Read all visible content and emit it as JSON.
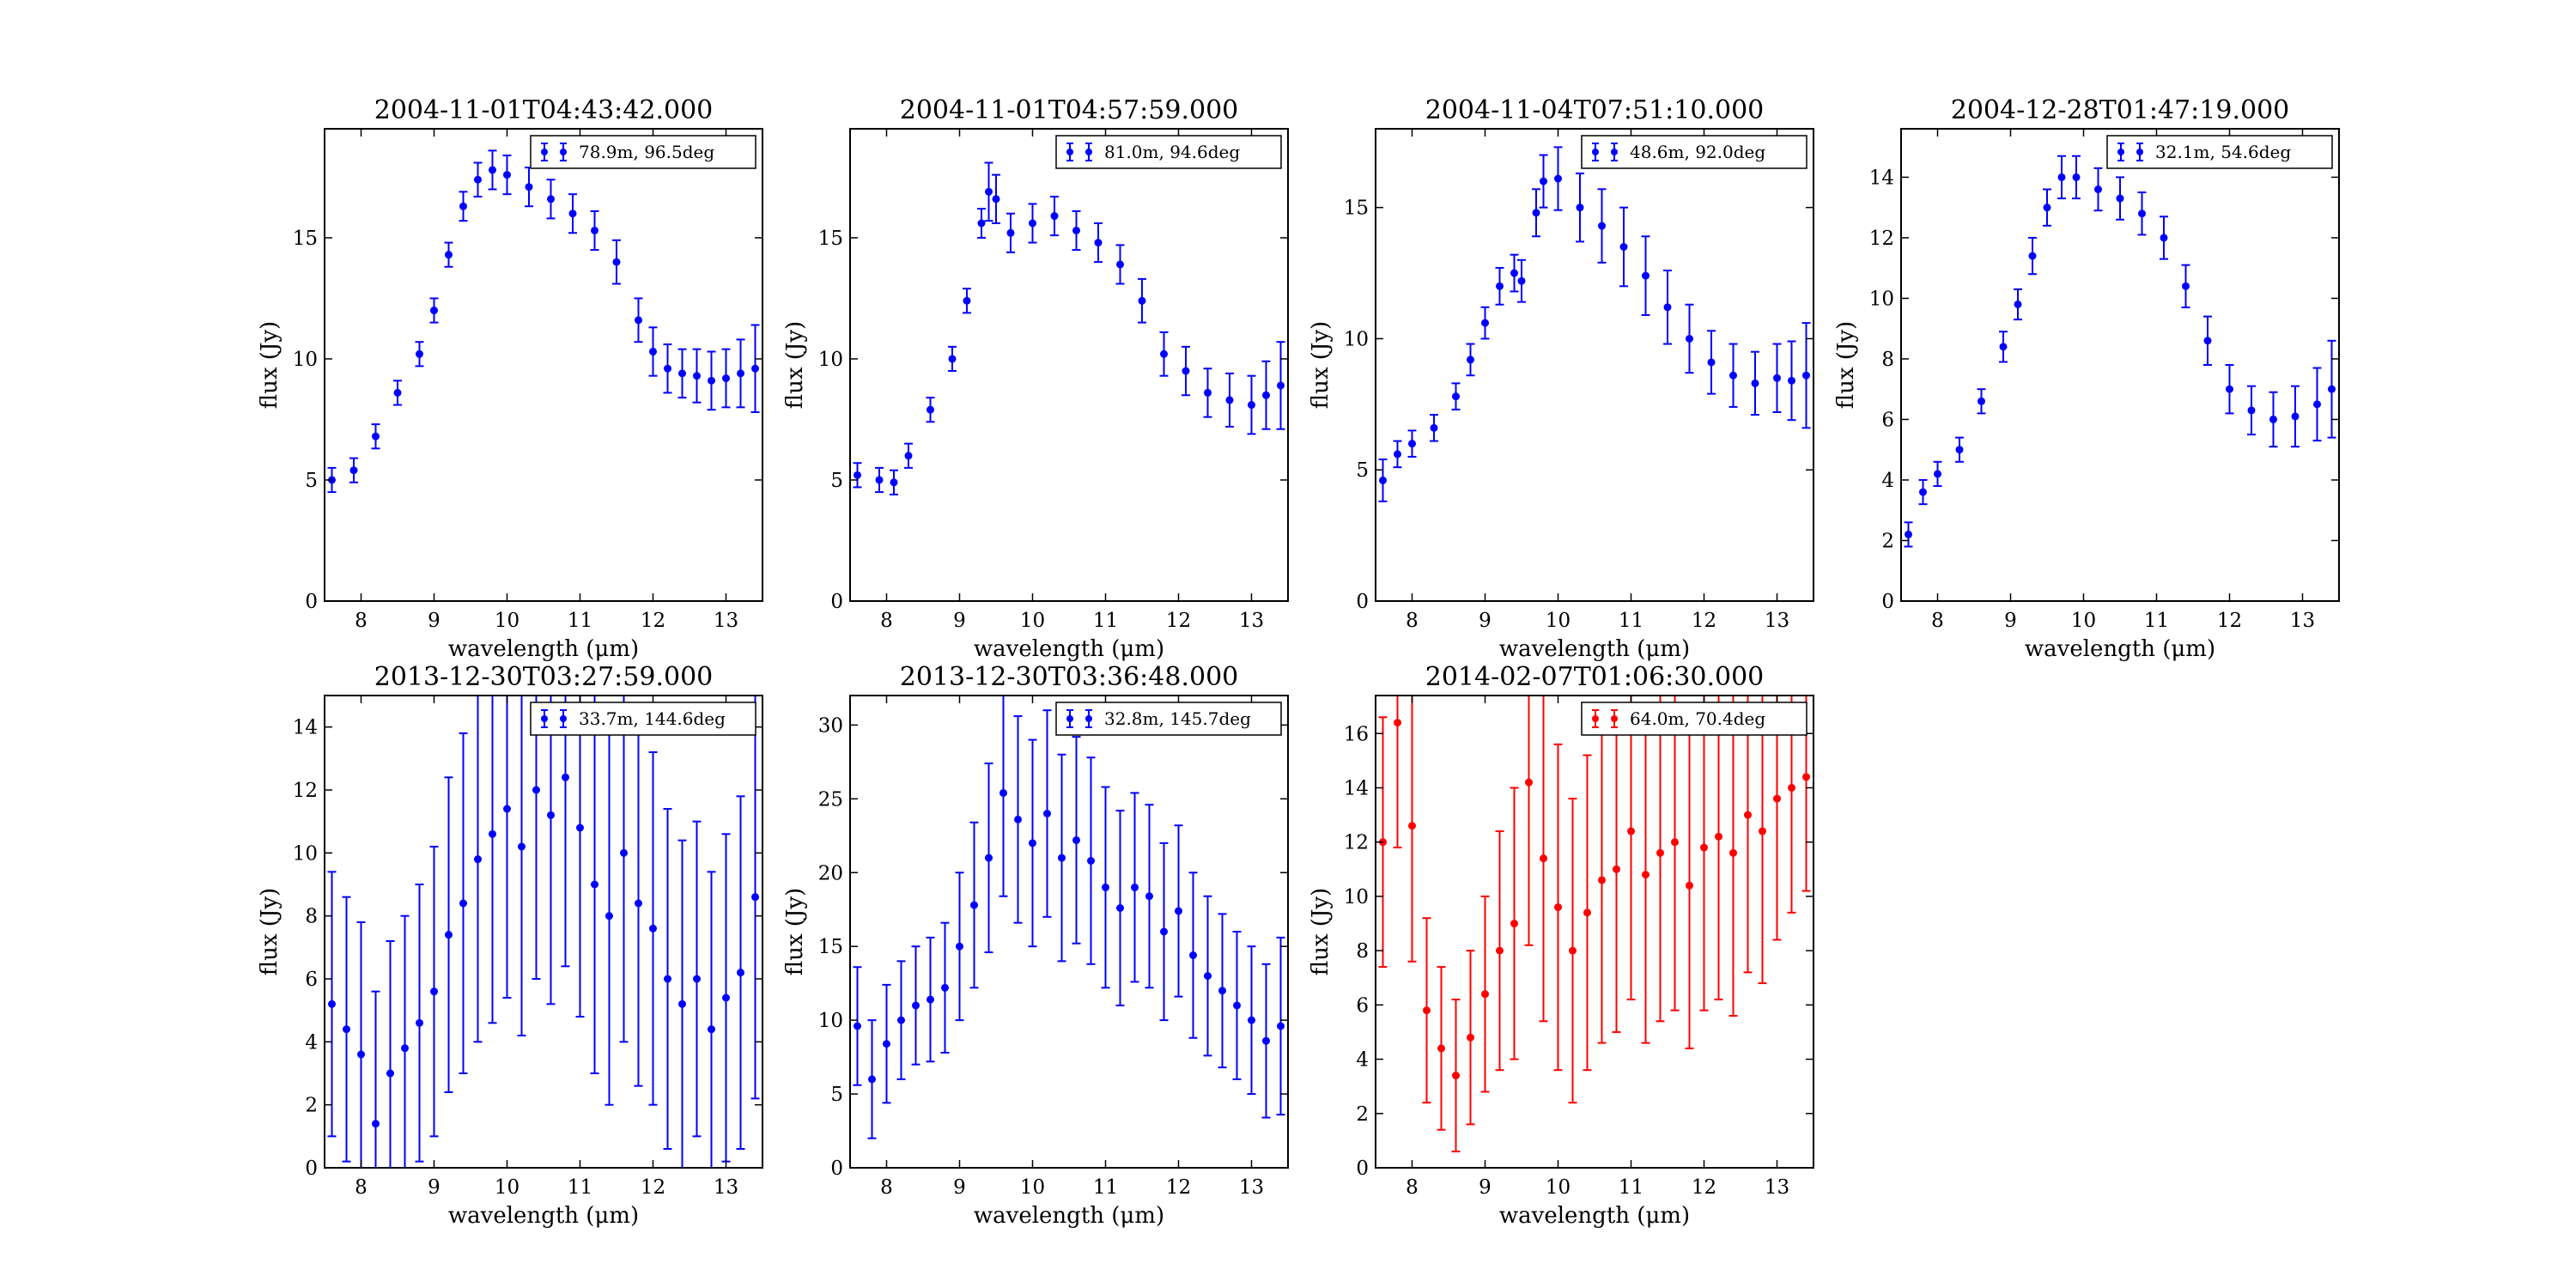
{
  "figure": {
    "colors": {
      "blue": "#0000ff",
      "red": "#ff0000"
    }
  },
  "chart_data": [
    {
      "type": "scatter",
      "title": "2004-11-01T04:43:42.000",
      "xlabel": "wavelength (μm)",
      "ylabel": "flux (Jy)",
      "xlim": [
        7.5,
        13.5
      ],
      "ylim": [
        0,
        19.5
      ],
      "xticks": [
        "8",
        "9",
        "10",
        "11",
        "12",
        "13"
      ],
      "yticks": [
        "0",
        "5",
        "10",
        "15"
      ],
      "color": "#0000ff",
      "legend": {
        "label": "78.9m, 96.5deg",
        "position": "upper right"
      },
      "series": [
        {
          "label": "78.9m, 96.5deg",
          "x": [
            7.6,
            7.9,
            8.2,
            8.5,
            8.8,
            9.0,
            9.2,
            9.4,
            9.6,
            9.8,
            10.0,
            10.3,
            10.6,
            10.9,
            11.2,
            11.5,
            11.8,
            12.0,
            12.2,
            12.4,
            12.6,
            12.8,
            13.0,
            13.2,
            13.4
          ],
          "y": [
            5.0,
            5.4,
            6.8,
            8.6,
            10.2,
            12.0,
            14.3,
            16.3,
            17.4,
            17.8,
            17.6,
            17.1,
            16.6,
            16.0,
            15.3,
            14.0,
            11.6,
            10.3,
            9.6,
            9.4,
            9.3,
            9.1,
            9.2,
            9.4,
            9.6
          ],
          "err": [
            0.5,
            0.5,
            0.5,
            0.5,
            0.5,
            0.5,
            0.5,
            0.6,
            0.7,
            0.8,
            0.8,
            0.8,
            0.8,
            0.8,
            0.8,
            0.9,
            0.9,
            1.0,
            1.0,
            1.0,
            1.1,
            1.2,
            1.2,
            1.4,
            1.8
          ]
        }
      ]
    },
    {
      "type": "scatter",
      "title": "2004-11-01T04:57:59.000",
      "xlabel": "wavelength (μm)",
      "ylabel": "flux (Jy)",
      "xlim": [
        7.5,
        13.5
      ],
      "ylim": [
        0,
        19.5
      ],
      "xticks": [
        "8",
        "9",
        "10",
        "11",
        "12",
        "13"
      ],
      "yticks": [
        "0",
        "5",
        "10",
        "15"
      ],
      "color": "#0000ff",
      "legend": {
        "label": "81.0m, 94.6deg",
        "position": "upper right"
      },
      "series": [
        {
          "label": "81.0m, 94.6deg",
          "x": [
            7.6,
            7.9,
            8.1,
            8.3,
            8.6,
            8.9,
            9.1,
            9.3,
            9.4,
            9.5,
            9.7,
            10.0,
            10.3,
            10.6,
            10.9,
            11.2,
            11.5,
            11.8,
            12.1,
            12.4,
            12.7,
            13.0,
            13.2,
            13.4
          ],
          "y": [
            5.2,
            5.0,
            4.9,
            6.0,
            7.9,
            10.0,
            12.4,
            15.6,
            16.9,
            16.6,
            15.2,
            15.6,
            15.9,
            15.3,
            14.8,
            13.9,
            12.4,
            10.2,
            9.5,
            8.6,
            8.3,
            8.1,
            8.5,
            8.9
          ],
          "err": [
            0.5,
            0.5,
            0.5,
            0.5,
            0.5,
            0.5,
            0.5,
            0.6,
            1.2,
            1.0,
            0.8,
            0.8,
            0.8,
            0.8,
            0.8,
            0.8,
            0.9,
            0.9,
            1.0,
            1.0,
            1.1,
            1.2,
            1.4,
            1.8
          ]
        }
      ]
    },
    {
      "type": "scatter",
      "title": "2004-11-04T07:51:10.000",
      "xlabel": "wavelength (μm)",
      "ylabel": "flux (Jy)",
      "xlim": [
        7.5,
        13.5
      ],
      "ylim": [
        0,
        18
      ],
      "xticks": [
        "8",
        "9",
        "10",
        "11",
        "12",
        "13"
      ],
      "yticks": [
        "0",
        "5",
        "10",
        "15"
      ],
      "color": "#0000ff",
      "legend": {
        "label": "48.6m, 92.0deg",
        "position": "upper right"
      },
      "series": [
        {
          "label": "48.6m, 92.0deg",
          "x": [
            7.6,
            7.8,
            8.0,
            8.3,
            8.6,
            8.8,
            9.0,
            9.2,
            9.4,
            9.5,
            9.7,
            9.8,
            10.0,
            10.3,
            10.6,
            10.9,
            11.2,
            11.5,
            11.8,
            12.1,
            12.4,
            12.7,
            13.0,
            13.2,
            13.4
          ],
          "y": [
            4.6,
            5.6,
            6.0,
            6.6,
            7.8,
            9.2,
            10.6,
            12.0,
            12.5,
            12.2,
            14.8,
            16.0,
            16.1,
            15.0,
            14.3,
            13.5,
            12.4,
            11.2,
            10.0,
            9.1,
            8.6,
            8.3,
            8.5,
            8.4,
            8.6
          ],
          "err": [
            0.8,
            0.5,
            0.5,
            0.5,
            0.5,
            0.6,
            0.6,
            0.7,
            0.7,
            0.8,
            0.9,
            1.0,
            1.2,
            1.3,
            1.4,
            1.5,
            1.5,
            1.4,
            1.3,
            1.2,
            1.2,
            1.2,
            1.3,
            1.5,
            2.0
          ]
        }
      ]
    },
    {
      "type": "scatter",
      "title": "2004-12-28T01:47:19.000",
      "xlabel": "wavelength (μm)",
      "ylabel": "flux (Jy)",
      "xlim": [
        7.5,
        13.5
      ],
      "ylim": [
        0,
        15.6
      ],
      "xticks": [
        "8",
        "9",
        "10",
        "11",
        "12",
        "13"
      ],
      "yticks": [
        "0",
        "2",
        "4",
        "6",
        "8",
        "10",
        "12",
        "14"
      ],
      "color": "#0000ff",
      "legend": {
        "label": "32.1m, 54.6deg",
        "position": "upper right"
      },
      "series": [
        {
          "label": "32.1m, 54.6deg",
          "x": [
            7.6,
            7.8,
            8.0,
            8.3,
            8.6,
            8.9,
            9.1,
            9.3,
            9.5,
            9.7,
            9.9,
            10.2,
            10.5,
            10.8,
            11.1,
            11.4,
            11.7,
            12.0,
            12.3,
            12.6,
            12.9,
            13.2,
            13.4
          ],
          "y": [
            2.2,
            3.6,
            4.2,
            5.0,
            6.6,
            8.4,
            9.8,
            11.4,
            13.0,
            14.0,
            14.0,
            13.6,
            13.3,
            12.8,
            12.0,
            10.4,
            8.6,
            7.0,
            6.3,
            6.0,
            6.1,
            6.5,
            7.0
          ],
          "err": [
            0.4,
            0.4,
            0.4,
            0.4,
            0.4,
            0.5,
            0.5,
            0.6,
            0.6,
            0.7,
            0.7,
            0.7,
            0.7,
            0.7,
            0.7,
            0.7,
            0.8,
            0.8,
            0.8,
            0.9,
            1.0,
            1.2,
            1.6
          ]
        }
      ]
    },
    {
      "type": "scatter",
      "title": "2013-12-30T03:27:59.000",
      "xlabel": "wavelength (μm)",
      "ylabel": "flux (Jy)",
      "xlim": [
        7.5,
        13.5
      ],
      "ylim": [
        0,
        15
      ],
      "xticks": [
        "8",
        "9",
        "10",
        "11",
        "12",
        "13"
      ],
      "yticks": [
        "0",
        "2",
        "4",
        "6",
        "8",
        "10",
        "12",
        "14"
      ],
      "color": "#0000ff",
      "legend": {
        "label": "33.7m, 144.6deg",
        "position": "upper right"
      },
      "series": [
        {
          "label": "33.7m, 144.6deg",
          "x": [
            7.6,
            7.8,
            8.0,
            8.2,
            8.4,
            8.6,
            8.8,
            9.0,
            9.2,
            9.4,
            9.6,
            9.8,
            10.0,
            10.2,
            10.4,
            10.6,
            10.8,
            11.0,
            11.2,
            11.4,
            11.6,
            11.8,
            12.0,
            12.2,
            12.4,
            12.6,
            12.8,
            13.0,
            13.2,
            13.4
          ],
          "y": [
            5.2,
            4.4,
            3.6,
            1.4,
            3.0,
            3.8,
            4.6,
            5.6,
            7.4,
            8.4,
            9.8,
            10.6,
            11.4,
            10.2,
            12.0,
            11.2,
            12.4,
            10.8,
            9.0,
            8.0,
            10.0,
            8.4,
            7.6,
            6.0,
            5.2,
            6.0,
            4.4,
            5.4,
            6.2,
            8.6
          ],
          "err": [
            4.2,
            4.2,
            4.2,
            4.2,
            4.2,
            4.2,
            4.4,
            4.6,
            5.0,
            5.4,
            5.8,
            6.0,
            6.0,
            6.0,
            6.0,
            6.0,
            6.0,
            6.0,
            6.0,
            6.0,
            6.0,
            5.8,
            5.6,
            5.4,
            5.2,
            5.0,
            5.0,
            5.2,
            5.6,
            6.4
          ]
        }
      ]
    },
    {
      "type": "scatter",
      "title": "2013-12-30T03:36:48.000",
      "xlabel": "wavelength (μm)",
      "ylabel": "flux (Jy)",
      "xlim": [
        7.5,
        13.5
      ],
      "ylim": [
        0,
        32
      ],
      "xticks": [
        "8",
        "9",
        "10",
        "11",
        "12",
        "13"
      ],
      "yticks": [
        "0",
        "5",
        "10",
        "15",
        "20",
        "25",
        "30"
      ],
      "color": "#0000ff",
      "legend": {
        "label": "32.8m, 145.7deg",
        "position": "upper right"
      },
      "series": [
        {
          "label": "32.8m, 145.7deg",
          "x": [
            7.6,
            7.8,
            8.0,
            8.2,
            8.4,
            8.6,
            8.8,
            9.0,
            9.2,
            9.4,
            9.6,
            9.8,
            10.0,
            10.2,
            10.4,
            10.6,
            10.8,
            11.0,
            11.2,
            11.4,
            11.6,
            11.8,
            12.0,
            12.2,
            12.4,
            12.6,
            12.8,
            13.0,
            13.2,
            13.4
          ],
          "y": [
            9.6,
            6.0,
            8.4,
            10.0,
            11.0,
            11.4,
            12.2,
            15.0,
            17.8,
            21.0,
            25.4,
            23.6,
            22.0,
            24.0,
            21.0,
            22.2,
            20.8,
            19.0,
            17.6,
            19.0,
            18.4,
            16.0,
            17.4,
            14.4,
            13.0,
            12.0,
            11.0,
            10.0,
            8.6,
            9.6
          ],
          "err": [
            4.0,
            4.0,
            4.0,
            4.0,
            4.0,
            4.2,
            4.4,
            5.0,
            5.6,
            6.4,
            7.0,
            7.0,
            7.0,
            7.0,
            7.0,
            7.0,
            7.0,
            6.8,
            6.6,
            6.4,
            6.2,
            6.0,
            5.8,
            5.6,
            5.4,
            5.2,
            5.0,
            5.0,
            5.2,
            6.0
          ]
        }
      ]
    },
    {
      "type": "scatter",
      "title": "2014-02-07T01:06:30.000",
      "xlabel": "wavelength (μm)",
      "ylabel": "flux (Jy)",
      "xlim": [
        7.5,
        13.5
      ],
      "ylim": [
        0,
        17.4
      ],
      "xticks": [
        "8",
        "9",
        "10",
        "11",
        "12",
        "13"
      ],
      "yticks": [
        "0",
        "2",
        "4",
        "6",
        "8",
        "10",
        "12",
        "14",
        "16"
      ],
      "color": "#ff0000",
      "legend": {
        "label": "64.0m, 70.4deg",
        "position": "upper right"
      },
      "series": [
        {
          "label": "64.0m, 70.4deg",
          "x": [
            7.6,
            7.8,
            8.0,
            8.2,
            8.4,
            8.6,
            8.8,
            9.0,
            9.2,
            9.4,
            9.6,
            9.8,
            10.0,
            10.2,
            10.4,
            10.6,
            10.8,
            11.0,
            11.2,
            11.4,
            11.6,
            11.8,
            12.0,
            12.2,
            12.4,
            12.6,
            12.8,
            13.0,
            13.2,
            13.4
          ],
          "y": [
            12.0,
            16.4,
            12.6,
            5.8,
            4.4,
            3.4,
            4.8,
            6.4,
            8.0,
            9.0,
            14.2,
            11.4,
            9.6,
            8.0,
            9.4,
            10.6,
            11.0,
            12.4,
            10.8,
            11.6,
            12.0,
            10.4,
            11.8,
            12.2,
            11.6,
            13.0,
            12.4,
            13.6,
            14.0,
            14.4
          ],
          "err": [
            4.6,
            4.6,
            5.0,
            3.4,
            3.0,
            2.8,
            3.2,
            3.6,
            4.4,
            5.0,
            6.0,
            6.0,
            6.0,
            5.6,
            5.8,
            6.0,
            6.0,
            6.2,
            6.2,
            6.2,
            6.2,
            6.0,
            6.0,
            6.0,
            6.0,
            5.8,
            5.6,
            5.2,
            4.6,
            4.2
          ]
        }
      ]
    }
  ]
}
